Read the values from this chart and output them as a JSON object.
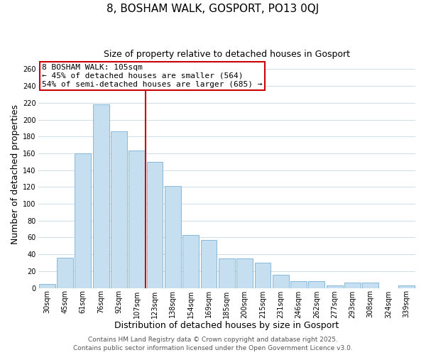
{
  "title": "8, BOSHAM WALK, GOSPORT, PO13 0QJ",
  "subtitle": "Size of property relative to detached houses in Gosport",
  "xlabel": "Distribution of detached houses by size in Gosport",
  "ylabel": "Number of detached properties",
  "categories": [
    "30sqm",
    "45sqm",
    "61sqm",
    "76sqm",
    "92sqm",
    "107sqm",
    "123sqm",
    "138sqm",
    "154sqm",
    "169sqm",
    "185sqm",
    "200sqm",
    "215sqm",
    "231sqm",
    "246sqm",
    "262sqm",
    "277sqm",
    "293sqm",
    "308sqm",
    "324sqm",
    "339sqm"
  ],
  "values": [
    5,
    36,
    160,
    218,
    186,
    163,
    150,
    121,
    63,
    57,
    35,
    35,
    30,
    16,
    8,
    8,
    3,
    6,
    6,
    0,
    3
  ],
  "bar_color": "#c5dff0",
  "bar_edge_color": "#7ab0d4",
  "highlight_index": 5,
  "highlight_color": "#cc0000",
  "annotation_title": "8 BOSHAM WALK: 105sqm",
  "annotation_line1": "← 45% of detached houses are smaller (564)",
  "annotation_line2": "54% of semi-detached houses are larger (685) →",
  "ylim": [
    0,
    270
  ],
  "yticks": [
    0,
    20,
    40,
    60,
    80,
    100,
    120,
    140,
    160,
    180,
    200,
    220,
    240,
    260
  ],
  "footer1": "Contains HM Land Registry data © Crown copyright and database right 2025.",
  "footer2": "Contains public sector information licensed under the Open Government Licence v3.0.",
  "background_color": "#ffffff",
  "grid_color": "#ccdde8",
  "title_fontsize": 11,
  "subtitle_fontsize": 9,
  "axis_label_fontsize": 9,
  "tick_fontsize": 7,
  "annot_fontsize": 8,
  "footer_fontsize": 6.5
}
